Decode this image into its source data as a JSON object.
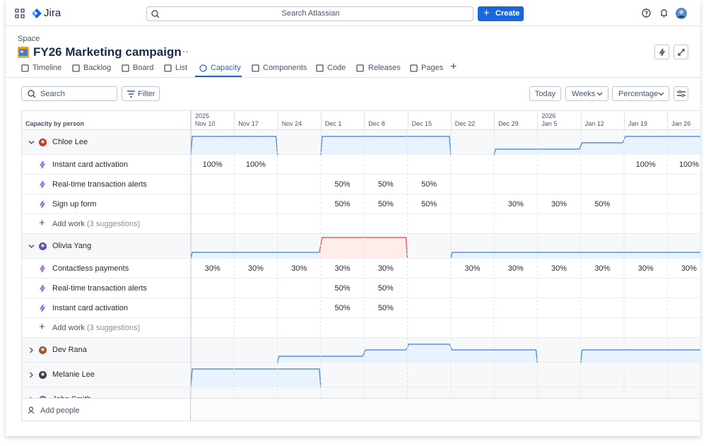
{
  "topbar": {
    "product": "Jira",
    "search": "Search Atlassian",
    "create": "Create"
  },
  "space": {
    "label": "Space",
    "title": "FY26 Marketing campaign"
  },
  "tabs": [
    "Timeline",
    "Backlog",
    "Board",
    "List",
    "Capacity",
    "Components",
    "Code",
    "Releases",
    "Pages"
  ],
  "toolbar": {
    "search": "Search",
    "filter": "Filter",
    "today": "Today",
    "scale": "Weeks",
    "unit": "Percentage"
  },
  "grid": {
    "header": "Capacity by person",
    "weeks": [
      {
        "year": "2025",
        "label": "Nov 10"
      },
      {
        "label": "Nov 17"
      },
      {
        "label": "Nov 24"
      },
      {
        "label": "Dec 1"
      },
      {
        "label": "Dec 8"
      },
      {
        "label": "Dec 15"
      },
      {
        "label": "Dec 22"
      },
      {
        "label": "Dec 29"
      },
      {
        "year": "2026",
        "label": "Jan 5"
      },
      {
        "label": "Jan 12"
      },
      {
        "label": "Jan 19"
      },
      {
        "label": "Jan 26"
      }
    ],
    "people": [
      {
        "name": "Chloe Lee",
        "expanded": true,
        "work": [
          {
            "title": "Instant card activation",
            "cells": [
              "100%",
              "100%",
              null,
              null,
              null,
              null,
              null,
              null,
              null,
              null,
              "100%",
              "100%"
            ]
          },
          {
            "title": "Real-time transaction alerts",
            "cells": [
              null,
              null,
              null,
              "50%",
              "50%",
              "50%",
              null,
              null,
              null,
              null,
              null,
              null
            ]
          },
          {
            "title": "Sign up form",
            "cells": [
              null,
              null,
              null,
              "50%",
              "50%",
              "50%",
              null,
              "30%",
              "30%",
              "50%",
              null,
              null
            ]
          }
        ],
        "add_work": "Add work",
        "suggestions": "(3 suggestions)"
      },
      {
        "name": "Olivia Yang",
        "expanded": true,
        "work": [
          {
            "title": "Contactless payments",
            "cells": [
              "30%",
              "30%",
              "30%",
              "30%",
              "30%",
              null,
              "30%",
              "30%",
              "30%",
              "30%",
              "30%",
              "30%"
            ]
          },
          {
            "title": "Real-time transaction alerts",
            "cells": [
              null,
              null,
              null,
              "50%",
              "50%",
              null,
              null,
              null,
              null,
              null,
              null,
              null
            ]
          },
          {
            "title": "Instant card activation",
            "cells": [
              null,
              null,
              null,
              "50%",
              "50%",
              null,
              null,
              null,
              null,
              null,
              null,
              null
            ]
          }
        ],
        "add_work": "Add work",
        "suggestions": "(3 suggestions)"
      },
      {
        "name": "Dev Rana",
        "expanded": false
      },
      {
        "name": "Melanie Lee",
        "expanded": false
      },
      {
        "name": "John Smith",
        "expanded": false
      }
    ],
    "add_people": "Add people"
  }
}
